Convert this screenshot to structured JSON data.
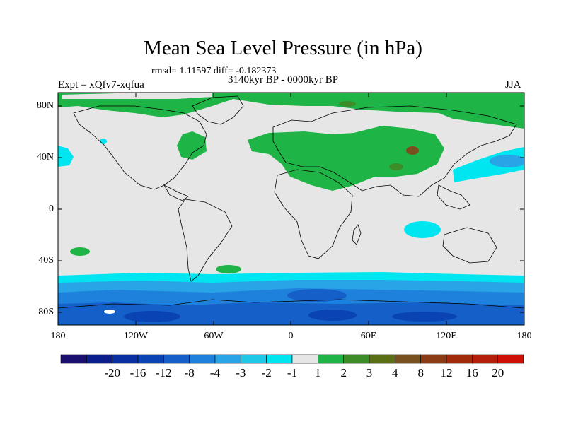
{
  "title": "Mean Sea Level Pressure (in hPa)",
  "stats": "rmsd= 1.11597 diff= -0.182373",
  "experiment": "Expt = xQfv7-xqfua",
  "period": "3140kyr BP - 0000kyr BP",
  "season": "JJA",
  "lat_ticks": [
    "80N",
    "40N",
    "0",
    "40S",
    "80S"
  ],
  "lon_ticks": [
    "180",
    "120W",
    "60W",
    "0",
    "60E",
    "120E",
    "180"
  ],
  "colorbar": {
    "colors": [
      "#1a0f6e",
      "#0a1f8c",
      "#0a2fa0",
      "#0a43b4",
      "#1460c8",
      "#1e82dc",
      "#28a5e6",
      "#1ec8e6",
      "#00e6f0",
      "#e6e6e6",
      "#1eb446",
      "#3c8c28",
      "#5a6e14",
      "#78501e",
      "#8c3c14",
      "#a02a0a",
      "#b41e0a",
      "#cd0f05"
    ],
    "labels": [
      "-20",
      "-16",
      "-12",
      "-8",
      "-4",
      "-3",
      "-2",
      "-1",
      "1",
      "2",
      "3",
      "4",
      "8",
      "12",
      "16",
      "20"
    ]
  }
}
